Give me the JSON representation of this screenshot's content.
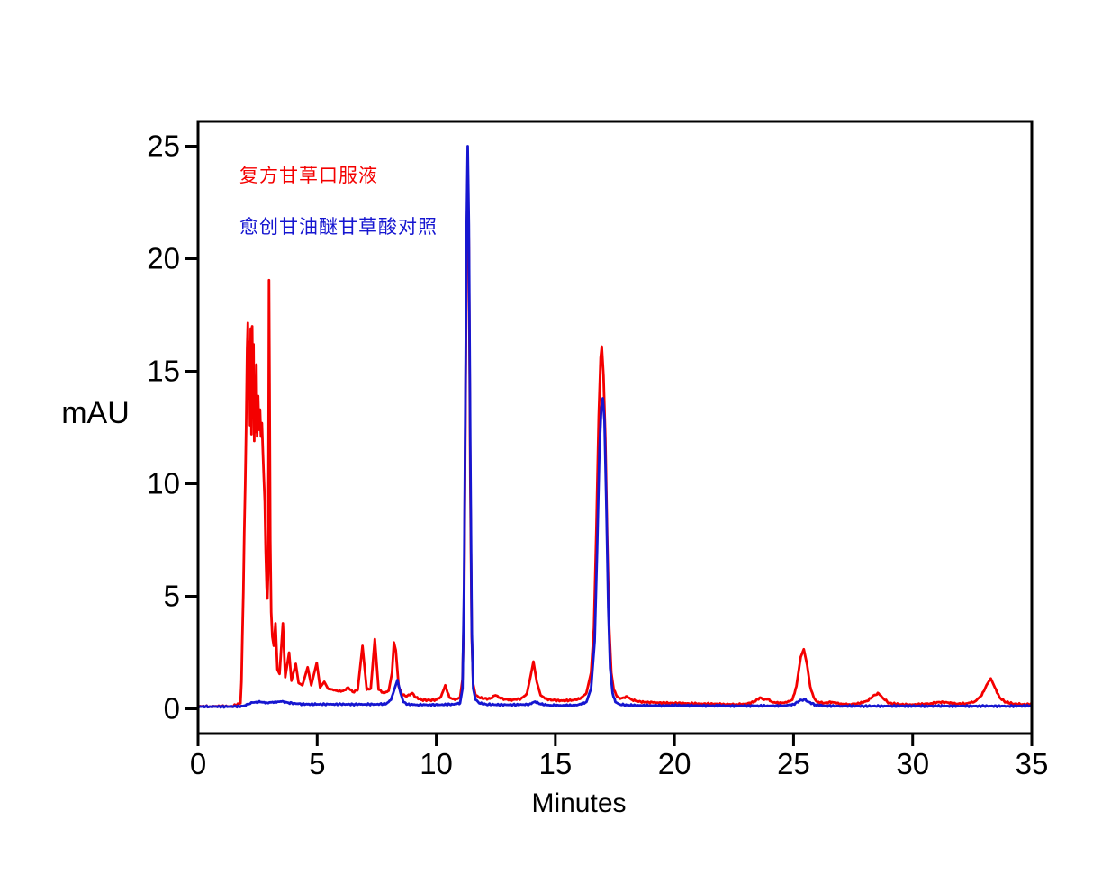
{
  "figure": {
    "background": "#ffffff",
    "axis_color": "#000000"
  },
  "chart_data": {
    "type": "line",
    "title": "",
    "xlabel": "Minutes",
    "ylabel": "mAU",
    "xlim": [
      0,
      35
    ],
    "ylim": [
      -1.1,
      26.1
    ],
    "xticks": [
      0,
      5,
      10,
      15,
      20,
      25,
      30,
      35
    ],
    "yticks": [
      0,
      5,
      10,
      15,
      20,
      25
    ],
    "grid": false,
    "legend_position": "top-left-inside",
    "series": [
      {
        "name": "复方甘草口服液",
        "color": "#f40000",
        "points": [
          [
            0,
            0.12
          ],
          [
            0.5,
            0.1
          ],
          [
            1.0,
            0.12
          ],
          [
            1.4,
            0.1
          ],
          [
            1.78,
            0.25
          ],
          [
            1.82,
            1.2
          ],
          [
            1.86,
            3.2
          ],
          [
            1.9,
            5.2
          ],
          [
            1.94,
            7.8
          ],
          [
            1.98,
            10.0
          ],
          [
            2.02,
            12.5
          ],
          [
            2.06,
            16.0
          ],
          [
            2.09,
            17.15
          ],
          [
            2.12,
            13.8
          ],
          [
            2.15,
            16.3
          ],
          [
            2.18,
            12.6
          ],
          [
            2.21,
            16.9
          ],
          [
            2.24,
            12.2
          ],
          [
            2.27,
            17.0
          ],
          [
            2.3,
            13.4
          ],
          [
            2.33,
            16.2
          ],
          [
            2.36,
            11.9
          ],
          [
            2.39,
            14.6
          ],
          [
            2.42,
            12.3
          ],
          [
            2.45,
            15.3
          ],
          [
            2.48,
            12.1
          ],
          [
            2.52,
            13.9
          ],
          [
            2.56,
            12.4
          ],
          [
            2.6,
            13.3
          ],
          [
            2.64,
            12.1
          ],
          [
            2.68,
            12.7
          ],
          [
            2.72,
            11.4
          ],
          [
            2.76,
            10.3
          ],
          [
            2.8,
            9.2
          ],
          [
            2.84,
            7.0
          ],
          [
            2.88,
            5.4
          ],
          [
            2.91,
            4.9
          ],
          [
            2.94,
            6.0
          ],
          [
            2.96,
            12.0
          ],
          [
            2.98,
            19.05
          ],
          [
            3.0,
            14.5
          ],
          [
            3.03,
            7.5
          ],
          [
            3.07,
            4.3
          ],
          [
            3.12,
            3.2
          ],
          [
            3.18,
            2.8
          ],
          [
            3.25,
            3.8
          ],
          [
            3.33,
            1.75
          ],
          [
            3.42,
            1.55
          ],
          [
            3.56,
            3.8
          ],
          [
            3.66,
            1.4
          ],
          [
            3.82,
            2.5
          ],
          [
            3.92,
            1.25
          ],
          [
            4.1,
            2.0
          ],
          [
            4.22,
            1.15
          ],
          [
            4.38,
            1.05
          ],
          [
            4.6,
            1.85
          ],
          [
            4.75,
            1.05
          ],
          [
            4.98,
            2.05
          ],
          [
            5.12,
            0.95
          ],
          [
            5.3,
            1.2
          ],
          [
            5.45,
            0.9
          ],
          [
            5.65,
            0.85
          ],
          [
            5.9,
            0.78
          ],
          [
            6.1,
            0.8
          ],
          [
            6.3,
            0.95
          ],
          [
            6.5,
            0.75
          ],
          [
            6.7,
            0.85
          ],
          [
            6.9,
            2.8
          ],
          [
            7.08,
            0.85
          ],
          [
            7.25,
            0.9
          ],
          [
            7.42,
            3.1
          ],
          [
            7.58,
            0.85
          ],
          [
            7.8,
            0.7
          ],
          [
            8.0,
            0.8
          ],
          [
            8.14,
            1.6
          ],
          [
            8.22,
            2.95
          ],
          [
            8.3,
            2.6
          ],
          [
            8.42,
            1.0
          ],
          [
            8.55,
            0.65
          ],
          [
            8.75,
            0.55
          ],
          [
            9.0,
            0.7
          ],
          [
            9.15,
            0.5
          ],
          [
            9.4,
            0.4
          ],
          [
            9.7,
            0.38
          ],
          [
            10.0,
            0.4
          ],
          [
            10.2,
            0.55
          ],
          [
            10.38,
            1.05
          ],
          [
            10.55,
            0.5
          ],
          [
            10.8,
            0.4
          ],
          [
            11.0,
            0.5
          ],
          [
            11.1,
            1.3
          ],
          [
            11.17,
            4.5
          ],
          [
            11.22,
            12.0
          ],
          [
            11.27,
            20.0
          ],
          [
            11.32,
            24.0
          ],
          [
            11.37,
            20.5
          ],
          [
            11.43,
            10.0
          ],
          [
            11.49,
            3.2
          ],
          [
            11.55,
            1.1
          ],
          [
            11.65,
            0.6
          ],
          [
            11.8,
            0.5
          ],
          [
            12.0,
            0.45
          ],
          [
            12.25,
            0.45
          ],
          [
            12.48,
            0.6
          ],
          [
            12.65,
            0.5
          ],
          [
            12.9,
            0.42
          ],
          [
            13.2,
            0.4
          ],
          [
            13.55,
            0.45
          ],
          [
            13.8,
            0.65
          ],
          [
            13.95,
            1.4
          ],
          [
            14.08,
            2.1
          ],
          [
            14.22,
            1.2
          ],
          [
            14.38,
            0.6
          ],
          [
            14.6,
            0.45
          ],
          [
            14.9,
            0.38
          ],
          [
            15.3,
            0.36
          ],
          [
            15.7,
            0.38
          ],
          [
            16.05,
            0.45
          ],
          [
            16.3,
            0.7
          ],
          [
            16.5,
            1.6
          ],
          [
            16.62,
            3.6
          ],
          [
            16.72,
            8.0
          ],
          [
            16.82,
            13.0
          ],
          [
            16.9,
            15.6
          ],
          [
            16.95,
            16.1
          ],
          [
            17.02,
            14.8
          ],
          [
            17.1,
            12.0
          ],
          [
            17.18,
            7.5
          ],
          [
            17.26,
            3.6
          ],
          [
            17.35,
            1.6
          ],
          [
            17.45,
            0.85
          ],
          [
            17.58,
            0.55
          ],
          [
            17.72,
            0.45
          ],
          [
            17.88,
            0.5
          ],
          [
            18.02,
            0.55
          ],
          [
            18.18,
            0.42
          ],
          [
            18.4,
            0.34
          ],
          [
            18.7,
            0.3
          ],
          [
            19.1,
            0.28
          ],
          [
            19.6,
            0.26
          ],
          [
            20.1,
            0.25
          ],
          [
            20.6,
            0.24
          ],
          [
            21.1,
            0.22
          ],
          [
            21.6,
            0.22
          ],
          [
            22.1,
            0.2
          ],
          [
            22.6,
            0.2
          ],
          [
            23.05,
            0.22
          ],
          [
            23.35,
            0.32
          ],
          [
            23.6,
            0.5
          ],
          [
            23.75,
            0.4
          ],
          [
            23.92,
            0.45
          ],
          [
            24.1,
            0.3
          ],
          [
            24.4,
            0.26
          ],
          [
            24.7,
            0.28
          ],
          [
            24.95,
            0.4
          ],
          [
            25.12,
            1.0
          ],
          [
            25.3,
            2.3
          ],
          [
            25.43,
            2.65
          ],
          [
            25.57,
            1.95
          ],
          [
            25.7,
            1.0
          ],
          [
            25.85,
            0.5
          ],
          [
            26.0,
            0.3
          ],
          [
            26.3,
            0.26
          ],
          [
            26.6,
            0.3
          ],
          [
            26.95,
            0.22
          ],
          [
            27.35,
            0.2
          ],
          [
            27.75,
            0.24
          ],
          [
            28.1,
            0.35
          ],
          [
            28.4,
            0.62
          ],
          [
            28.57,
            0.68
          ],
          [
            28.75,
            0.48
          ],
          [
            29.0,
            0.26
          ],
          [
            29.4,
            0.2
          ],
          [
            29.85,
            0.18
          ],
          [
            30.3,
            0.2
          ],
          [
            30.75,
            0.24
          ],
          [
            31.1,
            0.3
          ],
          [
            31.45,
            0.28
          ],
          [
            31.85,
            0.22
          ],
          [
            32.25,
            0.24
          ],
          [
            32.6,
            0.32
          ],
          [
            32.9,
            0.6
          ],
          [
            33.1,
            1.05
          ],
          [
            33.28,
            1.35
          ],
          [
            33.45,
            0.95
          ],
          [
            33.65,
            0.5
          ],
          [
            33.9,
            0.3
          ],
          [
            34.25,
            0.22
          ],
          [
            34.6,
            0.2
          ],
          [
            35.0,
            0.2
          ]
        ]
      },
      {
        "name": "愈创甘油醚甘草酸对照",
        "color": "#1616d0",
        "points": [
          [
            0,
            0.1
          ],
          [
            0.5,
            0.1
          ],
          [
            1.0,
            0.1
          ],
          [
            1.5,
            0.1
          ],
          [
            1.9,
            0.12
          ],
          [
            2.1,
            0.2
          ],
          [
            2.3,
            0.28
          ],
          [
            2.6,
            0.3
          ],
          [
            2.9,
            0.27
          ],
          [
            3.2,
            0.3
          ],
          [
            3.5,
            0.32
          ],
          [
            3.8,
            0.27
          ],
          [
            4.2,
            0.22
          ],
          [
            4.6,
            0.2
          ],
          [
            5.0,
            0.2
          ],
          [
            5.5,
            0.2
          ],
          [
            6.0,
            0.2
          ],
          [
            6.5,
            0.2
          ],
          [
            7.0,
            0.2
          ],
          [
            7.5,
            0.2
          ],
          [
            7.9,
            0.22
          ],
          [
            8.1,
            0.4
          ],
          [
            8.25,
            0.9
          ],
          [
            8.37,
            1.28
          ],
          [
            8.5,
            0.7
          ],
          [
            8.62,
            0.3
          ],
          [
            8.8,
            0.2
          ],
          [
            9.2,
            0.18
          ],
          [
            9.7,
            0.18
          ],
          [
            10.2,
            0.18
          ],
          [
            10.7,
            0.2
          ],
          [
            11.0,
            0.25
          ],
          [
            11.1,
            0.9
          ],
          [
            11.17,
            5.5
          ],
          [
            11.22,
            13.0
          ],
          [
            11.27,
            21.0
          ],
          [
            11.32,
            25.0
          ],
          [
            11.37,
            21.5
          ],
          [
            11.43,
            11.5
          ],
          [
            11.49,
            3.5
          ],
          [
            11.55,
            0.9
          ],
          [
            11.65,
            0.4
          ],
          [
            11.8,
            0.25
          ],
          [
            12.1,
            0.2
          ],
          [
            12.5,
            0.18
          ],
          [
            13.0,
            0.18
          ],
          [
            13.5,
            0.18
          ],
          [
            13.9,
            0.2
          ],
          [
            14.15,
            0.32
          ],
          [
            14.4,
            0.2
          ],
          [
            14.8,
            0.16
          ],
          [
            15.3,
            0.15
          ],
          [
            15.9,
            0.16
          ],
          [
            16.3,
            0.3
          ],
          [
            16.5,
            0.9
          ],
          [
            16.65,
            3.0
          ],
          [
            16.75,
            7.0
          ],
          [
            16.85,
            11.5
          ],
          [
            16.93,
            13.4
          ],
          [
            16.99,
            13.8
          ],
          [
            17.06,
            12.8
          ],
          [
            17.14,
            9.0
          ],
          [
            17.22,
            4.5
          ],
          [
            17.3,
            1.8
          ],
          [
            17.4,
            0.7
          ],
          [
            17.52,
            0.3
          ],
          [
            17.7,
            0.2
          ],
          [
            18.0,
            0.16
          ],
          [
            18.5,
            0.15
          ],
          [
            19.0,
            0.15
          ],
          [
            19.5,
            0.14
          ],
          [
            20.0,
            0.15
          ],
          [
            21.0,
            0.14
          ],
          [
            22.0,
            0.13
          ],
          [
            23.0,
            0.13
          ],
          [
            24.0,
            0.13
          ],
          [
            24.6,
            0.14
          ],
          [
            25.0,
            0.2
          ],
          [
            25.25,
            0.35
          ],
          [
            25.45,
            0.42
          ],
          [
            25.65,
            0.3
          ],
          [
            25.9,
            0.18
          ],
          [
            26.3,
            0.13
          ],
          [
            27.0,
            0.12
          ],
          [
            28.0,
            0.12
          ],
          [
            29.0,
            0.12
          ],
          [
            30.0,
            0.12
          ],
          [
            31.0,
            0.12
          ],
          [
            32.0,
            0.12
          ],
          [
            33.0,
            0.12
          ],
          [
            34.0,
            0.12
          ],
          [
            35.0,
            0.13
          ]
        ]
      }
    ]
  }
}
